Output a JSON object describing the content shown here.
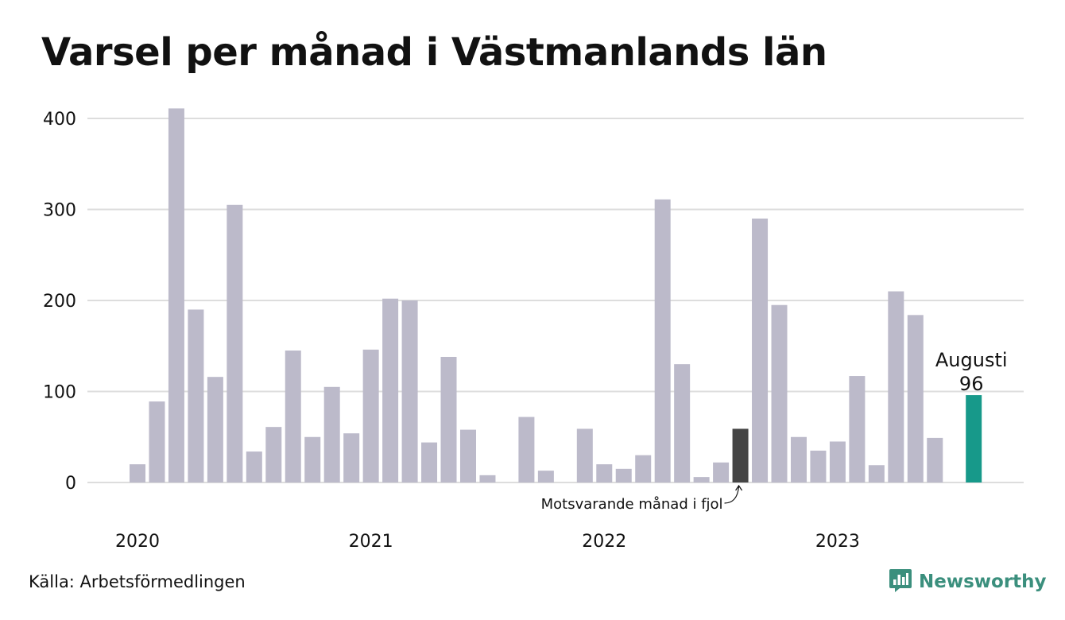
{
  "title": "Varsel per månad i Västmanlands län",
  "source": "Källa: Arbetsförmedlingen",
  "brand": {
    "name": "Newsworthy",
    "icon": "newsworthy-logo-icon"
  },
  "colors": {
    "bar": "#bcbaca",
    "comparison": "#454545",
    "current": "#17998a",
    "grid": "#dddddd",
    "brand": "#3b8f7d"
  },
  "annotation": "Motsvarande månad i fjol",
  "callout": {
    "label": "Augusti",
    "value": "96"
  },
  "chart_data": {
    "type": "bar",
    "title": "Varsel per månad i Västmanlands län",
    "xlabel": "",
    "ylabel": "",
    "ylim": [
      0,
      420
    ],
    "yticks": [
      0,
      100,
      200,
      300,
      400
    ],
    "ytick_labels": [
      "0",
      "100",
      "200",
      "300",
      "400"
    ],
    "grid": true,
    "year_labels": [
      {
        "label": "2020",
        "month_index": 0
      },
      {
        "label": "2021",
        "month_index": 12
      },
      {
        "label": "2022",
        "month_index": 24
      },
      {
        "label": "2023",
        "month_index": 36
      }
    ],
    "categories": [
      "2020-01",
      "2020-02",
      "2020-03",
      "2020-04",
      "2020-05",
      "2020-06",
      "2020-07",
      "2020-08",
      "2020-09",
      "2020-10",
      "2020-11",
      "2020-12",
      "2021-01",
      "2021-02",
      "2021-03",
      "2021-04",
      "2021-05",
      "2021-06",
      "2021-07",
      "2021-08",
      "2021-09",
      "2021-10",
      "2021-11",
      "2021-12",
      "2022-01",
      "2022-02",
      "2022-03",
      "2022-04",
      "2022-05",
      "2022-06",
      "2022-07",
      "2022-08",
      "2022-09",
      "2022-10",
      "2022-11",
      "2022-12",
      "2023-01",
      "2023-02",
      "2023-03",
      "2023-04",
      "2023-05",
      "2023-06",
      "2023-07",
      "2023-08"
    ],
    "values": [
      20,
      89,
      411,
      190,
      116,
      305,
      34,
      61,
      145,
      50,
      105,
      54,
      146,
      202,
      200,
      44,
      138,
      58,
      8,
      0,
      72,
      13,
      0,
      59,
      20,
      15,
      30,
      311,
      130,
      6,
      22,
      59,
      290,
      195,
      50,
      35,
      45,
      117,
      19,
      210,
      184,
      49,
      0,
      96
    ],
    "highlight": [
      {
        "category": "2021-08",
        "role": "comparison"
      },
      {
        "category": "2022-08",
        "role": "comparison"
      },
      {
        "category": "2023-08",
        "role": "current"
      }
    ]
  }
}
